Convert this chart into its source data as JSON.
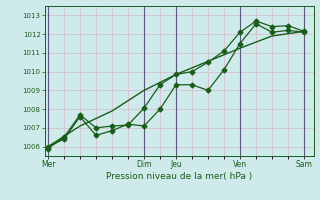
{
  "title": "Pression niveau de la mer( hPa )",
  "bg_color": "#ceeaea",
  "grid_color": "#d4b8c8",
  "line_color": "#1a5c1a",
  "vline_color": "#5a5a7a",
  "ylim": [
    1005.5,
    1013.5
  ],
  "yticks": [
    1006,
    1007,
    1008,
    1009,
    1010,
    1011,
    1012,
    1013
  ],
  "xtick_labels": [
    "Mer",
    "",
    "",
    "Dim",
    "Jeu",
    "",
    "Ven",
    "",
    "Sam"
  ],
  "xtick_positions": [
    0,
    1,
    2,
    3,
    4,
    5,
    6,
    7,
    8
  ],
  "xtick_display": [
    0,
    3,
    4,
    6,
    8
  ],
  "xtick_display_labels": [
    "Mer",
    "Dim",
    "Jeu",
    "Ven",
    "Sam"
  ],
  "xlim": [
    -0.1,
    8.3
  ],
  "line1_x": [
    0,
    0.5,
    1.0,
    1.5,
    2.0,
    2.5,
    3.0,
    3.5,
    4.0,
    4.5,
    5.0,
    5.5,
    6.0,
    6.5,
    7.0,
    7.5,
    8.0
  ],
  "line1_y": [
    1006.0,
    1006.4,
    1007.6,
    1006.6,
    1006.85,
    1007.2,
    1007.1,
    1008.0,
    1009.3,
    1009.3,
    1009.0,
    1010.1,
    1011.5,
    1012.55,
    1012.1,
    1012.2,
    1012.1
  ],
  "line2_x": [
    0,
    0.5,
    1.0,
    1.5,
    2.0,
    2.5,
    3.0,
    3.5,
    4.0,
    4.5,
    5.0,
    5.5,
    6.0,
    6.5,
    7.0,
    7.5,
    8.0
  ],
  "line2_y": [
    1005.9,
    1006.5,
    1007.7,
    1007.0,
    1007.1,
    1007.15,
    1008.05,
    1009.3,
    1009.85,
    1010.0,
    1010.5,
    1011.1,
    1012.1,
    1012.7,
    1012.4,
    1012.45,
    1012.15
  ],
  "line3_x": [
    0,
    1.0,
    2.0,
    3.0,
    4.0,
    5.0,
    6.0,
    7.0,
    8.0
  ],
  "line3_y": [
    1006.0,
    1007.1,
    1007.9,
    1009.0,
    1009.85,
    1010.55,
    1011.25,
    1011.9,
    1012.15
  ],
  "vline_positions": [
    0,
    3,
    4,
    6,
    8
  ]
}
